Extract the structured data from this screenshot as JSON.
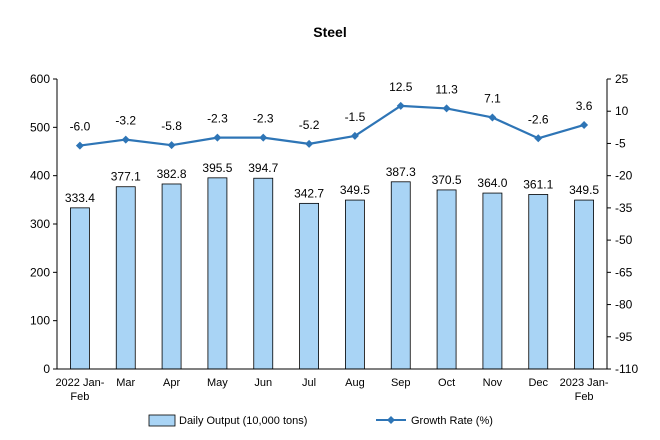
{
  "chart_data": {
    "type": "bar",
    "title": "Steel",
    "categories": [
      [
        "2022 Jan-",
        "Feb"
      ],
      [
        "Mar"
      ],
      [
        "Apr"
      ],
      [
        "May"
      ],
      [
        "Jun"
      ],
      [
        "Jul"
      ],
      [
        "Aug"
      ],
      [
        "Sep"
      ],
      [
        "Oct"
      ],
      [
        "Nov"
      ],
      [
        "Dec"
      ],
      [
        "2023 Jan-",
        "Feb"
      ]
    ],
    "series": [
      {
        "name": "Daily Output (10,000 tons)",
        "kind": "bar",
        "axis": "left",
        "color": "#a9d4f5",
        "values": [
          333.4,
          377.1,
          382.8,
          395.5,
          394.7,
          342.7,
          349.5,
          387.3,
          370.5,
          364.0,
          361.1,
          349.5
        ],
        "labels": [
          "333.4",
          "377.1",
          "382.8",
          "395.5",
          "394.7",
          "342.7",
          "349.5",
          "387.3",
          "370.5",
          "364.0",
          "361.1",
          "349.5"
        ]
      },
      {
        "name": "Growth Rate (%)",
        "kind": "line",
        "axis": "right",
        "color": "#2e75b6",
        "values": [
          -6.0,
          -3.2,
          -5.8,
          -2.3,
          -2.3,
          -5.2,
          -1.5,
          12.5,
          11.3,
          7.1,
          -2.6,
          3.6
        ],
        "labels": [
          "-6.0",
          "-3.2",
          "-5.8",
          "-2.3",
          "-2.3",
          "-5.2",
          "-1.5",
          "12.5",
          "11.3",
          "7.1",
          "-2.6",
          "3.6"
        ]
      }
    ],
    "y_left": {
      "range": [
        0,
        600
      ],
      "ticks": [
        0,
        100,
        200,
        300,
        400,
        500,
        600
      ],
      "tick_labels": [
        "0",
        "100",
        "200",
        "300",
        "400",
        "500",
        "600"
      ]
    },
    "y_right": {
      "range": [
        -110,
        25
      ],
      "ticks": [
        25,
        10,
        -5,
        -20,
        -35,
        -50,
        -65,
        -80,
        -95,
        -110
      ],
      "tick_labels": [
        "25",
        "10",
        "-5",
        "-20",
        "-35",
        "-50",
        "-65",
        "-80",
        "-95",
        "-110"
      ]
    },
    "grid": false,
    "legend_position": "bottom"
  }
}
